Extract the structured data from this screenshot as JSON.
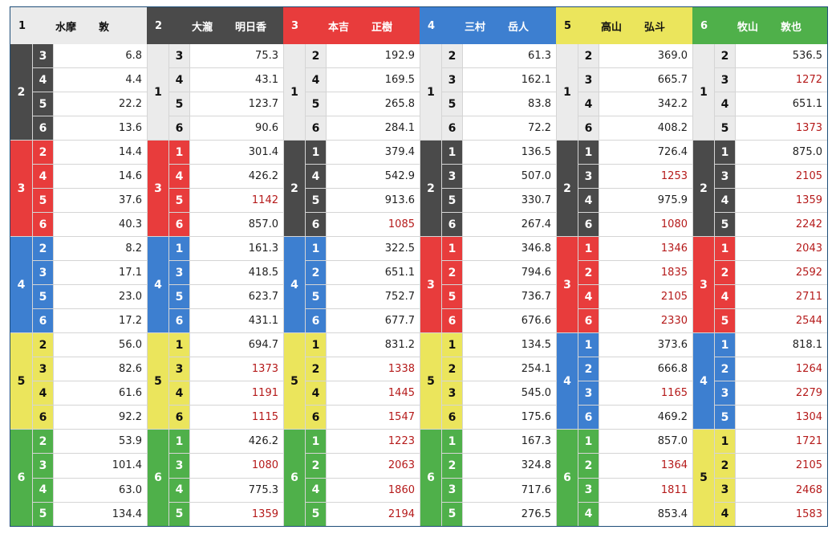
{
  "lane_colors": {
    "1": "#ebebeb",
    "2": "#4a4a4a",
    "3": "#e83c3c",
    "4": "#3d7fd0",
    "5": "#ebe55c",
    "6": "#4fb04a"
  },
  "highlight_color": "#b51a1a",
  "blocks": [
    {
      "lane": "1",
      "surname": "水摩",
      "given": "敦",
      "groups": [
        {
          "second": "2",
          "rows": [
            {
              "third": "3",
              "odds": "6.8"
            },
            {
              "third": "4",
              "odds": "4.4"
            },
            {
              "third": "5",
              "odds": "22.2"
            },
            {
              "third": "6",
              "odds": "13.6"
            }
          ]
        },
        {
          "second": "3",
          "rows": [
            {
              "third": "2",
              "odds": "14.4"
            },
            {
              "third": "4",
              "odds": "14.6"
            },
            {
              "third": "5",
              "odds": "37.6"
            },
            {
              "third": "6",
              "odds": "40.3"
            }
          ]
        },
        {
          "second": "4",
          "rows": [
            {
              "third": "2",
              "odds": "8.2"
            },
            {
              "third": "3",
              "odds": "17.1"
            },
            {
              "third": "5",
              "odds": "23.0"
            },
            {
              "third": "6",
              "odds": "17.2"
            }
          ]
        },
        {
          "second": "5",
          "rows": [
            {
              "third": "2",
              "odds": "56.0"
            },
            {
              "third": "3",
              "odds": "82.6"
            },
            {
              "third": "4",
              "odds": "61.6"
            },
            {
              "third": "6",
              "odds": "92.2"
            }
          ]
        },
        {
          "second": "6",
          "rows": [
            {
              "third": "2",
              "odds": "53.9"
            },
            {
              "third": "3",
              "odds": "101.4"
            },
            {
              "third": "4",
              "odds": "63.0"
            },
            {
              "third": "5",
              "odds": "134.4"
            }
          ]
        }
      ]
    },
    {
      "lane": "2",
      "surname": "大瀧",
      "given": "明日香",
      "groups": [
        {
          "second": "1",
          "rows": [
            {
              "third": "3",
              "odds": "75.3"
            },
            {
              "third": "4",
              "odds": "43.1"
            },
            {
              "third": "5",
              "odds": "123.7"
            },
            {
              "third": "6",
              "odds": "90.6"
            }
          ]
        },
        {
          "second": "3",
          "rows": [
            {
              "third": "1",
              "odds": "301.4"
            },
            {
              "third": "4",
              "odds": "426.2"
            },
            {
              "third": "5",
              "odds": "1142"
            },
            {
              "third": "6",
              "odds": "857.0"
            }
          ]
        },
        {
          "second": "4",
          "rows": [
            {
              "third": "1",
              "odds": "161.3"
            },
            {
              "third": "3",
              "odds": "418.5"
            },
            {
              "third": "5",
              "odds": "623.7"
            },
            {
              "third": "6",
              "odds": "431.1"
            }
          ]
        },
        {
          "second": "5",
          "rows": [
            {
              "third": "1",
              "odds": "694.7"
            },
            {
              "third": "3",
              "odds": "1373"
            },
            {
              "third": "4",
              "odds": "1191"
            },
            {
              "third": "6",
              "odds": "1115"
            }
          ]
        },
        {
          "second": "6",
          "rows": [
            {
              "third": "1",
              "odds": "426.2"
            },
            {
              "third": "3",
              "odds": "1080"
            },
            {
              "third": "4",
              "odds": "775.3"
            },
            {
              "third": "5",
              "odds": "1359"
            }
          ]
        }
      ]
    },
    {
      "lane": "3",
      "surname": "本吉",
      "given": "正樹",
      "groups": [
        {
          "second": "1",
          "rows": [
            {
              "third": "2",
              "odds": "192.9"
            },
            {
              "third": "4",
              "odds": "169.5"
            },
            {
              "third": "5",
              "odds": "265.8"
            },
            {
              "third": "6",
              "odds": "284.1"
            }
          ]
        },
        {
          "second": "2",
          "rows": [
            {
              "third": "1",
              "odds": "379.4"
            },
            {
              "third": "4",
              "odds": "542.9"
            },
            {
              "third": "5",
              "odds": "913.6"
            },
            {
              "third": "6",
              "odds": "1085"
            }
          ]
        },
        {
          "second": "4",
          "rows": [
            {
              "third": "1",
              "odds": "322.5"
            },
            {
              "third": "2",
              "odds": "651.1"
            },
            {
              "third": "5",
              "odds": "752.7"
            },
            {
              "third": "6",
              "odds": "677.7"
            }
          ]
        },
        {
          "second": "5",
          "rows": [
            {
              "third": "1",
              "odds": "831.2"
            },
            {
              "third": "2",
              "odds": "1338"
            },
            {
              "third": "4",
              "odds": "1445"
            },
            {
              "third": "6",
              "odds": "1547"
            }
          ]
        },
        {
          "second": "6",
          "rows": [
            {
              "third": "1",
              "odds": "1223"
            },
            {
              "third": "2",
              "odds": "2063"
            },
            {
              "third": "4",
              "odds": "1860"
            },
            {
              "third": "5",
              "odds": "2194"
            }
          ]
        }
      ]
    },
    {
      "lane": "4",
      "surname": "三村",
      "given": "岳人",
      "groups": [
        {
          "second": "1",
          "rows": [
            {
              "third": "2",
              "odds": "61.3"
            },
            {
              "third": "3",
              "odds": "162.1"
            },
            {
              "third": "5",
              "odds": "83.8"
            },
            {
              "third": "6",
              "odds": "72.2"
            }
          ]
        },
        {
          "second": "2",
          "rows": [
            {
              "third": "1",
              "odds": "136.5"
            },
            {
              "third": "3",
              "odds": "507.0"
            },
            {
              "third": "5",
              "odds": "330.7"
            },
            {
              "third": "6",
              "odds": "267.4"
            }
          ]
        },
        {
          "second": "3",
          "rows": [
            {
              "third": "1",
              "odds": "346.8"
            },
            {
              "third": "2",
              "odds": "794.6"
            },
            {
              "third": "5",
              "odds": "736.7"
            },
            {
              "third": "6",
              "odds": "676.6"
            }
          ]
        },
        {
          "second": "5",
          "rows": [
            {
              "third": "1",
              "odds": "134.5"
            },
            {
              "third": "2",
              "odds": "254.1"
            },
            {
              "third": "3",
              "odds": "545.0"
            },
            {
              "third": "6",
              "odds": "175.6"
            }
          ]
        },
        {
          "second": "6",
          "rows": [
            {
              "third": "1",
              "odds": "167.3"
            },
            {
              "third": "2",
              "odds": "324.8"
            },
            {
              "third": "3",
              "odds": "717.6"
            },
            {
              "third": "5",
              "odds": "276.5"
            }
          ]
        }
      ]
    },
    {
      "lane": "5",
      "surname": "高山",
      "given": "弘斗",
      "groups": [
        {
          "second": "1",
          "rows": [
            {
              "third": "2",
              "odds": "369.0"
            },
            {
              "third": "3",
              "odds": "665.7"
            },
            {
              "third": "4",
              "odds": "342.2"
            },
            {
              "third": "6",
              "odds": "408.2"
            }
          ]
        },
        {
          "second": "2",
          "rows": [
            {
              "third": "1",
              "odds": "726.4"
            },
            {
              "third": "3",
              "odds": "1253"
            },
            {
              "third": "4",
              "odds": "975.9"
            },
            {
              "third": "6",
              "odds": "1080"
            }
          ]
        },
        {
          "second": "3",
          "rows": [
            {
              "third": "1",
              "odds": "1346"
            },
            {
              "third": "2",
              "odds": "1835"
            },
            {
              "third": "4",
              "odds": "2105"
            },
            {
              "third": "6",
              "odds": "2330"
            }
          ]
        },
        {
          "second": "4",
          "rows": [
            {
              "third": "1",
              "odds": "373.6"
            },
            {
              "third": "2",
              "odds": "666.8"
            },
            {
              "third": "3",
              "odds": "1165"
            },
            {
              "third": "6",
              "odds": "469.2"
            }
          ]
        },
        {
          "second": "6",
          "rows": [
            {
              "third": "1",
              "odds": "857.0"
            },
            {
              "third": "2",
              "odds": "1364"
            },
            {
              "third": "3",
              "odds": "1811"
            },
            {
              "third": "4",
              "odds": "853.4"
            }
          ]
        }
      ]
    },
    {
      "lane": "6",
      "surname": "牧山",
      "given": "敦也",
      "groups": [
        {
          "second": "1",
          "rows": [
            {
              "third": "2",
              "odds": "536.5"
            },
            {
              "third": "3",
              "odds": "1272"
            },
            {
              "third": "4",
              "odds": "651.1"
            },
            {
              "third": "5",
              "odds": "1373"
            }
          ]
        },
        {
          "second": "2",
          "rows": [
            {
              "third": "1",
              "odds": "875.0"
            },
            {
              "third": "3",
              "odds": "2105"
            },
            {
              "third": "4",
              "odds": "1359"
            },
            {
              "third": "5",
              "odds": "2242"
            }
          ]
        },
        {
          "second": "3",
          "rows": [
            {
              "third": "1",
              "odds": "2043"
            },
            {
              "third": "2",
              "odds": "2592"
            },
            {
              "third": "4",
              "odds": "2711"
            },
            {
              "third": "5",
              "odds": "2544"
            }
          ]
        },
        {
          "second": "4",
          "rows": [
            {
              "third": "1",
              "odds": "818.1"
            },
            {
              "third": "2",
              "odds": "1264"
            },
            {
              "third": "3",
              "odds": "2279"
            },
            {
              "third": "5",
              "odds": "1304"
            }
          ]
        },
        {
          "second": "5",
          "rows": [
            {
              "third": "1",
              "odds": "1721"
            },
            {
              "third": "2",
              "odds": "2105"
            },
            {
              "third": "3",
              "odds": "2468"
            },
            {
              "third": "4",
              "odds": "1583"
            }
          ]
        }
      ]
    }
  ]
}
